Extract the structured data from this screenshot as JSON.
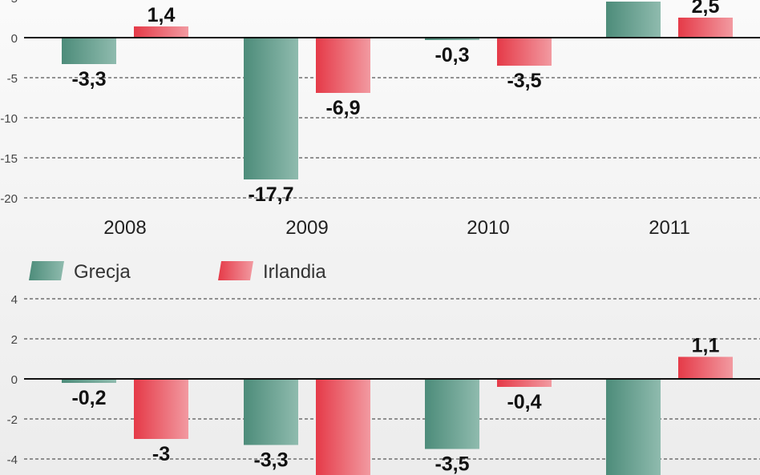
{
  "colors": {
    "greece": "#4d8c7a",
    "greece_light": "#8fbbae",
    "ireland": "#e53a48",
    "ireland_light": "#f29aa1",
    "grid": "#555555",
    "zero": "#111111"
  },
  "legend": {
    "greece": "Grecja",
    "ireland": "Irlandia"
  },
  "chart_data": [
    {
      "type": "bar",
      "categories": [
        "2008",
        "2009",
        "2010",
        "2011"
      ],
      "series": [
        {
          "name": "Grecja",
          "values": [
            -3.3,
            -17.7,
            -0.3,
            4.5
          ],
          "labels": [
            "-3,3",
            "-17,7",
            "-0,3",
            ""
          ]
        },
        {
          "name": "Irlandia",
          "values": [
            1.4,
            -6.9,
            -3.5,
            2.5
          ],
          "labels": [
            "1,4",
            "-6,9",
            "-3,5",
            "2,5"
          ]
        }
      ],
      "yticks": [
        "5",
        "0",
        "-5",
        "-10",
        "-15",
        "-20"
      ],
      "ylim": [
        -20,
        5
      ],
      "grid": true
    },
    {
      "type": "bar",
      "categories": [
        "2008",
        "2009",
        "2010",
        "2011"
      ],
      "series": [
        {
          "name": "Grecja",
          "values": [
            -0.2,
            -3.3,
            -3.5,
            -5.5
          ],
          "labels": [
            "-0,2",
            "-3,3",
            "-3,5",
            ""
          ]
        },
        {
          "name": "Irlandia",
          "values": [
            -3,
            -5.5,
            -0.4,
            1.1
          ],
          "labels": [
            "-3",
            "",
            "-0,4",
            "1,1"
          ]
        }
      ],
      "yticks": [
        "4",
        "2",
        "0",
        "-2",
        "-4"
      ],
      "ylim": [
        -5,
        4
      ],
      "grid": true
    }
  ]
}
